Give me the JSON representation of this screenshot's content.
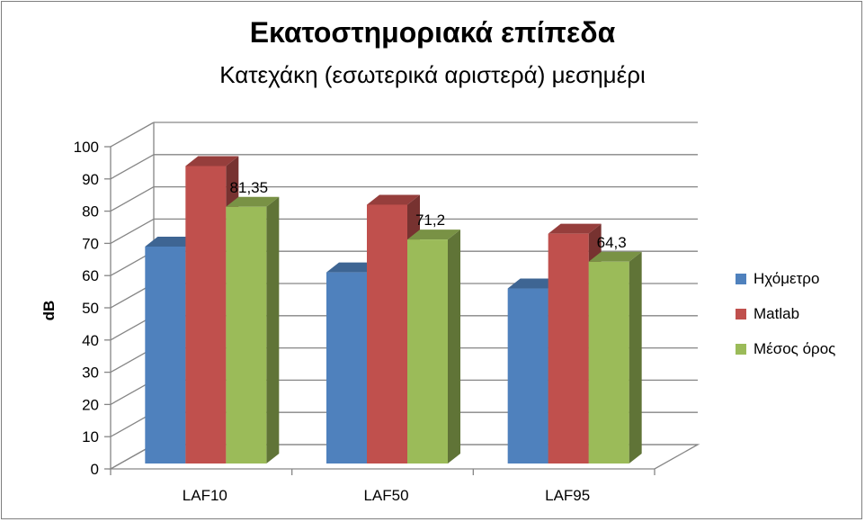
{
  "chart_data": {
    "type": "bar",
    "title": "Εκατοστημοριακά επίπεδα",
    "subtitle": "Κατεχάκη (εσωτερικά αριστερά) μεσημέρι",
    "ylabel": "dB",
    "xlabel": "",
    "ylim": [
      0,
      100
    ],
    "yticks": [
      0,
      10,
      20,
      30,
      40,
      50,
      60,
      70,
      80,
      90,
      100
    ],
    "grid": true,
    "legend_position": "right",
    "categories": [
      "LAF10",
      "LAF50",
      "LAF95"
    ],
    "series": [
      {
        "name": "Ηχόμετρο",
        "color": "#4f81bd",
        "values": [
          69,
          61,
          56
        ]
      },
      {
        "name": "Matlab",
        "color": "#c0504d",
        "values": [
          94,
          82,
          73
        ]
      },
      {
        "name": "Μέσος όρος",
        "color": "#9bbb59",
        "values": [
          81.35,
          71.2,
          64.3
        ],
        "data_labels": [
          "81,35",
          "71,2",
          "64,3"
        ]
      }
    ]
  }
}
